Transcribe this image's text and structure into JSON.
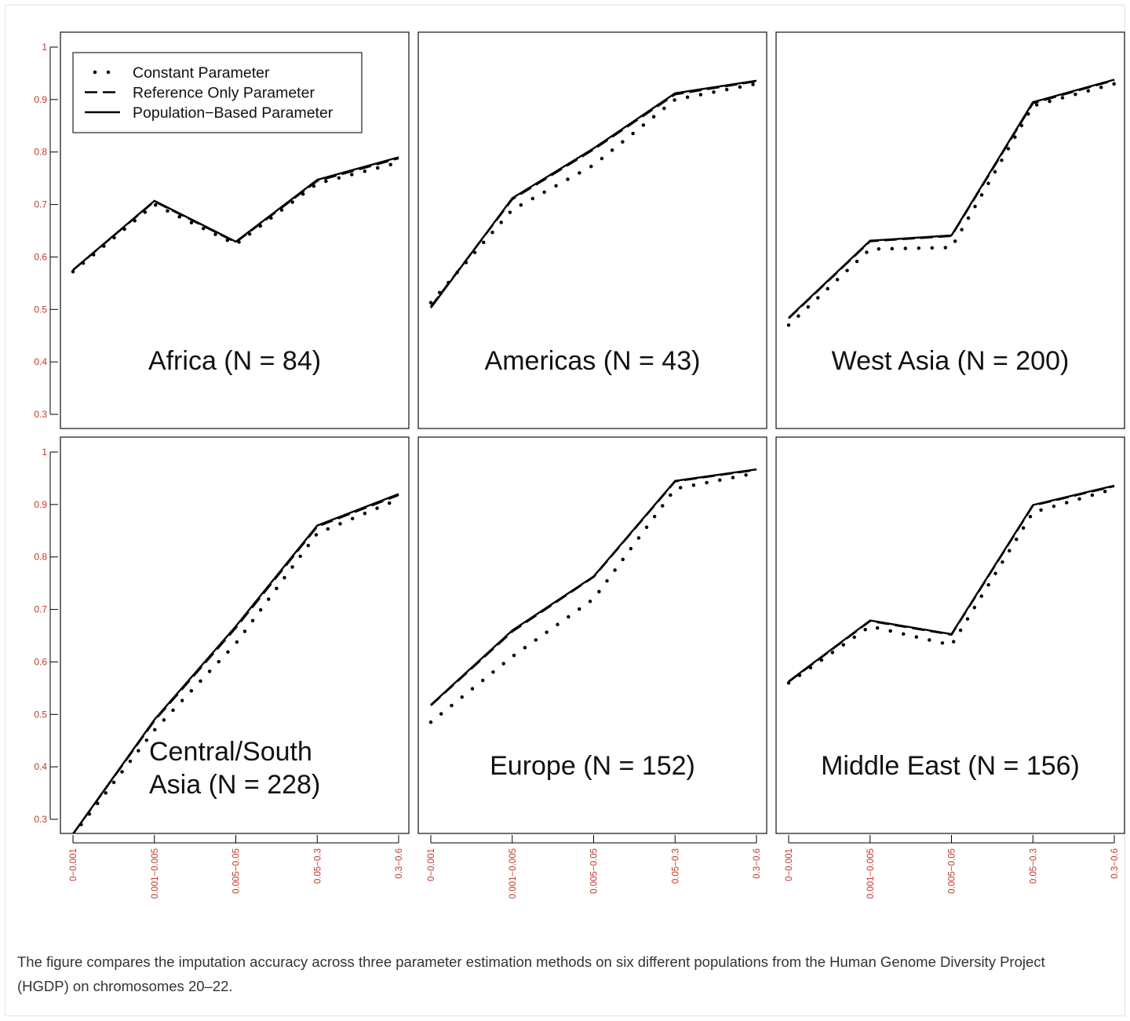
{
  "caption": "The figure compares the imputation accuracy across three parameter estimation methods on six different populations from the Human Genome Diversity Project (HGDP) on chromosomes 20–22.",
  "colors": {
    "tick_label": "#c0392b",
    "line": "#000000",
    "caption_text": "#333333"
  },
  "chart_data": {
    "type": "line",
    "title": "",
    "xlabel": "",
    "ylabel": "",
    "ylim": [
      0.27,
      1.02
    ],
    "yticks": [
      0.3,
      0.4,
      0.5,
      0.6,
      0.7,
      0.8,
      0.9,
      1
    ],
    "ytick_labels": [
      "0.3",
      "0.4",
      "0.5",
      "0.6",
      "0.7",
      "0.8",
      "0.9",
      "1"
    ],
    "x_tick_labels": [
      "0−0.001",
      "0.001−0.005",
      "0.005−0.05",
      "0.05−0.3",
      "0.3−0.6"
    ],
    "grid": false,
    "legend_placement": "top-left of first panel",
    "legend": [
      {
        "label": "Constant Parameter",
        "style": "dotted"
      },
      {
        "label": "Reference Only Parameter",
        "style": "dashed"
      },
      {
        "label": "Population−Based Parameter",
        "style": "solid"
      }
    ],
    "panels": [
      {
        "label": "Africa (N = 84)",
        "label_lines": [
          "Africa (N = 84)"
        ],
        "series": [
          {
            "name": "Constant Parameter",
            "values": [
              0.572,
              0.7,
              0.624,
              0.74,
              0.78
            ]
          },
          {
            "name": "Reference Only Parameter",
            "values": [
              0.575,
              0.706,
              0.628,
              0.745,
              0.788
            ]
          },
          {
            "name": "Population−Based Parameter",
            "values": [
              0.575,
              0.707,
              0.629,
              0.747,
              0.79
            ]
          }
        ]
      },
      {
        "label": "Americas (N = 43)",
        "label_lines": [
          "Americas (N = 43)"
        ],
        "series": [
          {
            "name": "Constant Parameter",
            "values": [
              0.513,
              0.69,
              0.775,
              0.9,
              0.93
            ]
          },
          {
            "name": "Reference Only Parameter",
            "values": [
              0.505,
              0.71,
              0.805,
              0.91,
              0.935
            ]
          },
          {
            "name": "Population−Based Parameter",
            "values": [
              0.503,
              0.712,
              0.807,
              0.912,
              0.936
            ]
          }
        ]
      },
      {
        "label": "West Asia (N = 200)",
        "label_lines": [
          "West Asia (N = 200)"
        ],
        "series": [
          {
            "name": "Constant Parameter",
            "values": [
              0.47,
              0.615,
              0.618,
              0.888,
              0.93
            ]
          },
          {
            "name": "Reference Only Parameter",
            "values": [
              0.483,
              0.63,
              0.64,
              0.893,
              0.937
            ]
          },
          {
            "name": "Population−Based Parameter",
            "values": [
              0.484,
              0.631,
              0.641,
              0.895,
              0.938
            ]
          }
        ]
      },
      {
        "label": "Central/South Asia (N = 228)",
        "label_lines": [
          "Central/South",
          "Asia (N = 228)"
        ],
        "series": [
          {
            "name": "Constant Parameter",
            "values": [
              0.27,
              0.47,
              0.635,
              0.845,
              0.91
            ]
          },
          {
            "name": "Reference Only Parameter",
            "values": [
              0.272,
              0.488,
              0.665,
              0.858,
              0.918
            ]
          },
          {
            "name": "Population−Based Parameter",
            "values": [
              0.272,
              0.49,
              0.668,
              0.86,
              0.92
            ]
          }
        ]
      },
      {
        "label": "Europe (N = 152)",
        "label_lines": [
          "Europe (N = 152)"
        ],
        "series": [
          {
            "name": "Constant Parameter",
            "values": [
              0.485,
              0.61,
              0.72,
              0.93,
              0.96
            ]
          },
          {
            "name": "Reference Only Parameter",
            "values": [
              0.517,
              0.658,
              0.762,
              0.944,
              0.966
            ]
          },
          {
            "name": "Population−Based Parameter",
            "values": [
              0.518,
              0.66,
              0.763,
              0.945,
              0.967
            ]
          }
        ]
      },
      {
        "label": "Middle East (N = 156)",
        "label_lines": [
          "Middle East (N = 156)"
        ],
        "series": [
          {
            "name": "Constant Parameter",
            "values": [
              0.56,
              0.668,
              0.632,
              0.885,
              0.93
            ]
          },
          {
            "name": "Reference Only Parameter",
            "values": [
              0.562,
              0.678,
              0.652,
              0.898,
              0.935
            ]
          },
          {
            "name": "Population−Based Parameter",
            "values": [
              0.563,
              0.679,
              0.653,
              0.899,
              0.936
            ]
          }
        ]
      }
    ]
  }
}
